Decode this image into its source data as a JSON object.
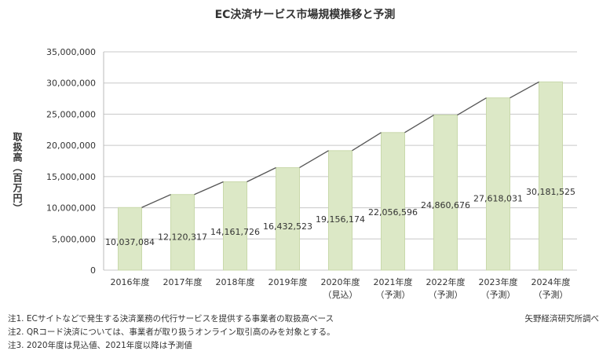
{
  "chart_data": {
    "type": "bar",
    "title": "EC決済サービス市場規模推移と予測",
    "ylabel": "取扱高（百万円）",
    "xlabel": "",
    "ylim": [
      0,
      35000000
    ],
    "yticks": [
      "0",
      "5,000,000",
      "10,000,000",
      "15,000,000",
      "20,000,000",
      "25,000,000",
      "30,000,000",
      "35,000,000"
    ],
    "categories": [
      {
        "line1": "2016年度",
        "line2": ""
      },
      {
        "line1": "2017年度",
        "line2": ""
      },
      {
        "line1": "2018年度",
        "line2": ""
      },
      {
        "line1": "2019年度",
        "line2": ""
      },
      {
        "line1": "2020年度",
        "line2": "（見込）"
      },
      {
        "line1": "2021年度",
        "line2": "（予測）"
      },
      {
        "line1": "2022年度",
        "line2": "（予測）"
      },
      {
        "line1": "2023年度",
        "line2": "（予測）"
      },
      {
        "line1": "2024年度",
        "line2": "（予測）"
      }
    ],
    "values": [
      10037084,
      12120317,
      14161726,
      16432523,
      19156174,
      22056596,
      24860676,
      27618031,
      30181525
    ],
    "value_labels": [
      "10,037,084",
      "12,120,317",
      "14,161,726",
      "16,432,523",
      "19,156,174",
      "22,056,596",
      "24,860,676",
      "27,618,031",
      "30,181,525"
    ],
    "grid": true,
    "trend_line": true,
    "colors": {
      "bar": "#dce8c6",
      "bar_edge": "#c9d9ab",
      "grid": "#c8c8c8",
      "trend": "#555555"
    }
  },
  "notes": [
    "注1. ECサイトなどで発生する決済業務の代行サービスを提供する事業者の取扱高ベース",
    "注2. QRコード決済については、事業者が取り扱うオンライン取引高のみを対象とする。",
    "注3. 2020年度は見込値、2021年度以降は予測値"
  ],
  "source": "矢野経済研究所調べ"
}
